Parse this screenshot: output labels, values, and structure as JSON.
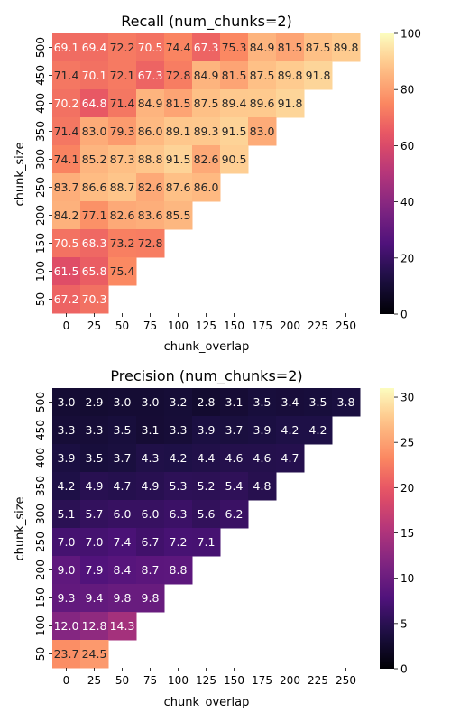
{
  "chart_data": [
    {
      "type": "heatmap",
      "title": "Recall (num_chunks=2)",
      "xlabel": "chunk_overlap",
      "ylabel": "chunk_size",
      "x_categories": [
        "0",
        "25",
        "50",
        "75",
        "100",
        "125",
        "150",
        "175",
        "200",
        "225",
        "250"
      ],
      "y_categories": [
        "500",
        "450",
        "400",
        "350",
        "300",
        "250",
        "200",
        "150",
        "100",
        "50"
      ],
      "values": [
        [
          69.1,
          69.4,
          72.2,
          70.5,
          74.4,
          67.3,
          75.3,
          84.9,
          81.5,
          87.5,
          89.8
        ],
        [
          71.4,
          70.1,
          72.1,
          67.3,
          72.8,
          84.9,
          81.5,
          87.5,
          89.8,
          91.8,
          null
        ],
        [
          70.2,
          64.8,
          71.4,
          84.9,
          81.5,
          87.5,
          89.4,
          89.6,
          91.8,
          null,
          null
        ],
        [
          71.4,
          83.0,
          79.3,
          86.0,
          89.1,
          89.3,
          91.5,
          83.0,
          null,
          null,
          null
        ],
        [
          74.1,
          85.2,
          87.3,
          88.8,
          91.5,
          82.6,
          90.5,
          null,
          null,
          null,
          null
        ],
        [
          83.7,
          86.6,
          88.7,
          82.6,
          87.6,
          86.0,
          null,
          null,
          null,
          null,
          null
        ],
        [
          84.2,
          77.1,
          82.6,
          83.6,
          85.5,
          null,
          null,
          null,
          null,
          null,
          null
        ],
        [
          70.5,
          68.3,
          73.2,
          72.8,
          null,
          null,
          null,
          null,
          null,
          null,
          null
        ],
        [
          61.5,
          65.8,
          75.4,
          null,
          null,
          null,
          null,
          null,
          null,
          null,
          null
        ],
        [
          67.2,
          70.3,
          null,
          null,
          null,
          null,
          null,
          null,
          null,
          null,
          null
        ]
      ],
      "colorbar": {
        "min": 0,
        "max": 100,
        "ticks": [
          0,
          20,
          40,
          60,
          80,
          100
        ]
      },
      "colormap": "magma"
    },
    {
      "type": "heatmap",
      "title": "Precision (num_chunks=2)",
      "xlabel": "chunk_overlap",
      "ylabel": "chunk_size",
      "x_categories": [
        "0",
        "25",
        "50",
        "75",
        "100",
        "125",
        "150",
        "175",
        "200",
        "225",
        "250"
      ],
      "y_categories": [
        "500",
        "450",
        "400",
        "350",
        "300",
        "250",
        "200",
        "150",
        "100",
        "50"
      ],
      "values": [
        [
          3.0,
          2.9,
          3.0,
          3.0,
          3.2,
          2.8,
          3.1,
          3.5,
          3.4,
          3.5,
          3.8
        ],
        [
          3.3,
          3.3,
          3.5,
          3.1,
          3.3,
          3.9,
          3.7,
          3.9,
          4.2,
          4.2,
          null
        ],
        [
          3.9,
          3.5,
          3.7,
          4.3,
          4.2,
          4.4,
          4.6,
          4.6,
          4.7,
          null,
          null
        ],
        [
          4.2,
          4.9,
          4.7,
          4.9,
          5.3,
          5.2,
          5.4,
          4.8,
          null,
          null,
          null
        ],
        [
          5.1,
          5.7,
          6.0,
          6.0,
          6.3,
          5.6,
          6.2,
          null,
          null,
          null,
          null
        ],
        [
          7.0,
          7.0,
          7.4,
          6.7,
          7.2,
          7.1,
          null,
          null,
          null,
          null,
          null
        ],
        [
          9.0,
          7.9,
          8.4,
          8.7,
          8.8,
          null,
          null,
          null,
          null,
          null,
          null
        ],
        [
          9.3,
          9.4,
          9.8,
          9.8,
          null,
          null,
          null,
          null,
          null,
          null,
          null
        ],
        [
          12.0,
          12.8,
          14.3,
          null,
          null,
          null,
          null,
          null,
          null,
          null,
          null
        ],
        [
          23.7,
          24.5,
          null,
          null,
          null,
          null,
          null,
          null,
          null,
          null,
          null
        ]
      ],
      "colorbar": {
        "min": 0,
        "max": 31,
        "ticks": [
          0,
          5,
          10,
          15,
          20,
          25,
          30
        ]
      },
      "colormap": "magma"
    }
  ]
}
